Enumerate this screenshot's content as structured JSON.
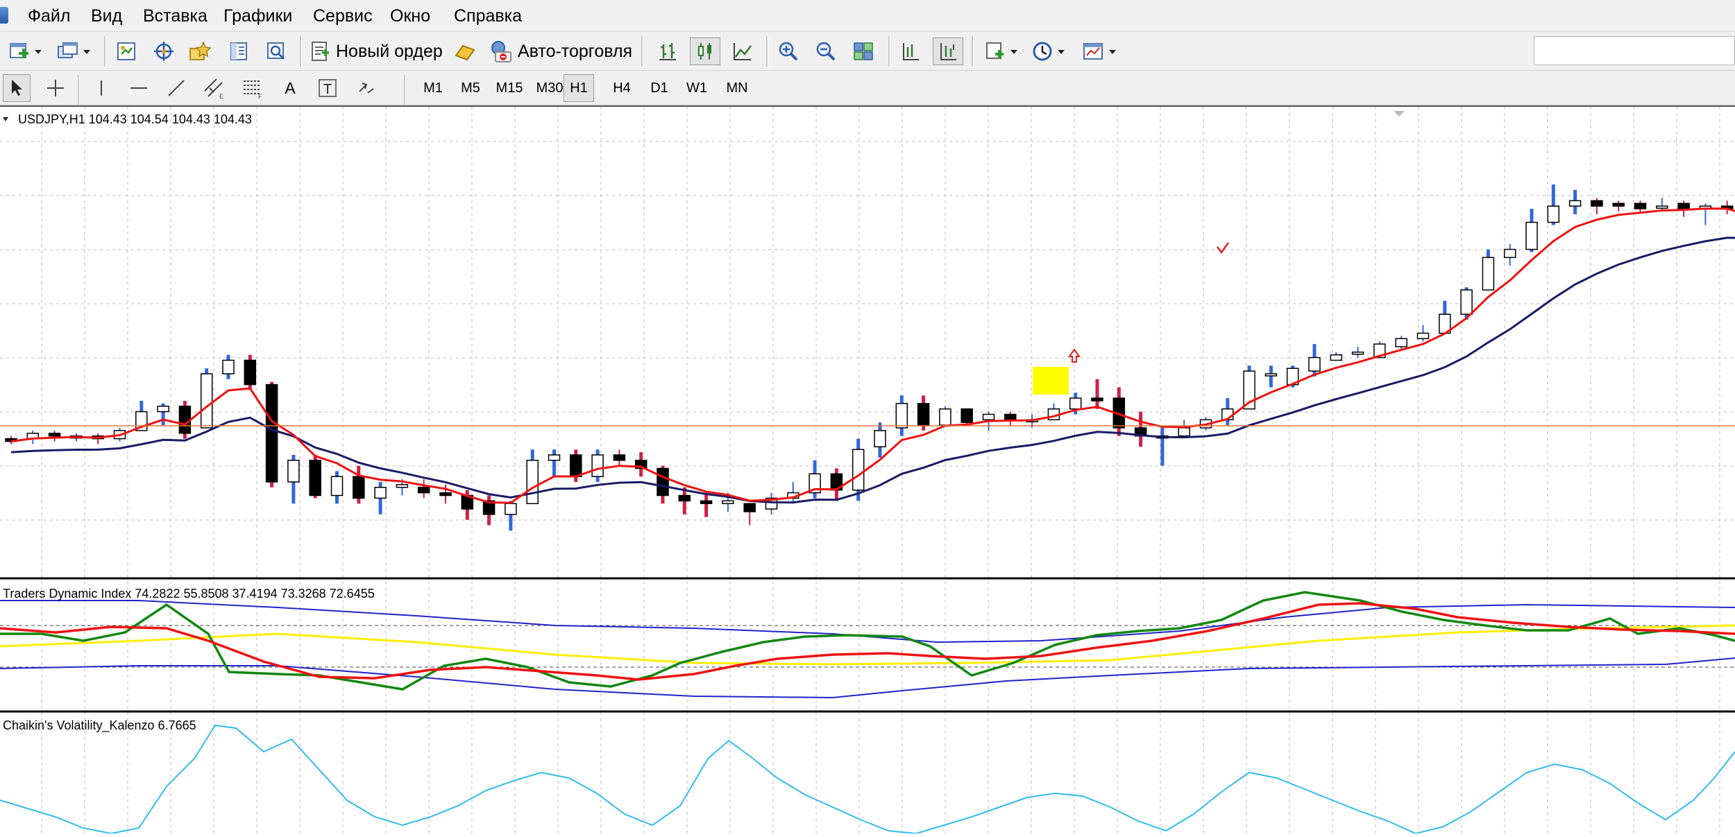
{
  "menu": [
    "Файл",
    "Вид",
    "Вставка",
    "Графики",
    "Сервис",
    "Окно",
    "Справка"
  ],
  "toolbar": {
    "new_order_label": "Новый ордер",
    "auto_trading_label": "Авто-торговля",
    "icons": [
      "new-chart-icon",
      "profiles-icon",
      "market-watch-icon",
      "navigator-icon",
      "favorites-icon",
      "data-window-icon",
      "strategy-tester-icon",
      "bar-chart-icon",
      "candlestick-icon",
      "line-chart-icon",
      "zoom-in-icon",
      "zoom-out-icon",
      "tile-windows-icon",
      "chart-shift-icon",
      "autoscroll-icon",
      "indicators-icon",
      "periods-icon",
      "templates-icon"
    ]
  },
  "drawing_tools": [
    "cursor-icon",
    "crosshair-icon",
    "vertical-line-icon",
    "horizontal-line-icon",
    "trendline-icon",
    "equidistant-channel-icon",
    "fibonacci-icon",
    "text-icon",
    "text-label-icon",
    "arrow-tools-icon"
  ],
  "drawing_labels": {
    "text": "A",
    "label": "T"
  },
  "timeframes": [
    "M1",
    "M5",
    "M15",
    "M30",
    "H1",
    "H4",
    "D1",
    "W1",
    "MN"
  ],
  "active_timeframe": "H1",
  "main_chart": {
    "label": "USDJPY,H1  104.43 104.54 104.43 104.43",
    "colors": {
      "bull_body": "#ffffff",
      "bear_body": "#000000",
      "bull_shadow": "#3366dd",
      "bear_shadow": "#cc2244",
      "ma_fast": "#ee1111",
      "ma_slow": "#1a1a66",
      "h_line": "#e0783a",
      "highlight": "#ffff00"
    }
  },
  "tdi_panel": {
    "label": "Traders Dynamic Index 74.2822 55.8508 37.4194 73.3268 72.6455",
    "colors": {
      "upper_band": "#2222cc",
      "lower_band": "#2222cc",
      "middle": "#ffee00",
      "rsi_price": "#118811",
      "trade_signal": "#ee1111"
    }
  },
  "chaikin_panel": {
    "label": "Chaikin's Volatility_Kalenzo 6.7665",
    "color": "#33bbee"
  },
  "chart_data": [
    {
      "type": "candlestick",
      "symbol": "USDJPY",
      "timeframe": "H1",
      "ohlc_last": {
        "open": 104.43,
        "high": 104.54,
        "low": 104.43,
        "close": 104.43
      },
      "candles_relative": [
        [
          0.26,
          0.25,
          0.24,
          0.27
        ],
        [
          0.26,
          0.28,
          0.24,
          0.29
        ],
        [
          0.28,
          0.27,
          0.25,
          0.29
        ],
        [
          0.27,
          0.27,
          0.25,
          0.28
        ],
        [
          0.27,
          0.26,
          0.24,
          0.28
        ],
        [
          0.26,
          0.29,
          0.25,
          0.3
        ],
        [
          0.29,
          0.36,
          0.29,
          0.4
        ],
        [
          0.36,
          0.38,
          0.31,
          0.39
        ],
        [
          0.38,
          0.28,
          0.26,
          0.4
        ],
        [
          0.3,
          0.5,
          0.3,
          0.52
        ],
        [
          0.5,
          0.55,
          0.48,
          0.57
        ],
        [
          0.55,
          0.46,
          0.44,
          0.57
        ],
        [
          0.46,
          0.1,
          0.08,
          0.47
        ],
        [
          0.1,
          0.18,
          0.02,
          0.2
        ],
        [
          0.18,
          0.05,
          0.04,
          0.2
        ],
        [
          0.05,
          0.12,
          0.02,
          0.14
        ],
        [
          0.12,
          0.04,
          0.02,
          0.16
        ],
        [
          0.04,
          0.08,
          -0.02,
          0.1
        ],
        [
          0.08,
          0.09,
          0.05,
          0.11
        ],
        [
          0.08,
          0.06,
          0.04,
          0.11
        ],
        [
          0.06,
          0.05,
          0.02,
          0.09
        ],
        [
          0.05,
          0.0,
          -0.04,
          0.07
        ],
        [
          0.03,
          -0.02,
          -0.06,
          0.05
        ],
        [
          -0.02,
          0.02,
          -0.08,
          0.03
        ],
        [
          0.02,
          0.18,
          0.02,
          0.22
        ],
        [
          0.18,
          0.2,
          0.12,
          0.22
        ],
        [
          0.2,
          0.12,
          0.1,
          0.22
        ],
        [
          0.12,
          0.2,
          0.1,
          0.22
        ],
        [
          0.2,
          0.18,
          0.16,
          0.22
        ],
        [
          0.18,
          0.15,
          0.12,
          0.21
        ],
        [
          0.15,
          0.05,
          0.02,
          0.16
        ],
        [
          0.05,
          0.03,
          -0.02,
          0.08
        ],
        [
          0.03,
          0.02,
          -0.03,
          0.06
        ],
        [
          0.02,
          0.03,
          -0.01,
          0.06
        ],
        [
          0.02,
          -0.01,
          -0.06,
          0.02
        ],
        [
          0.0,
          0.04,
          -0.02,
          0.06
        ],
        [
          0.04,
          0.06,
          0.02,
          0.1
        ],
        [
          0.06,
          0.13,
          0.04,
          0.18
        ],
        [
          0.13,
          0.07,
          0.03,
          0.15
        ],
        [
          0.07,
          0.22,
          0.03,
          0.26
        ],
        [
          0.23,
          0.29,
          0.19,
          0.32
        ],
        [
          0.3,
          0.39,
          0.27,
          0.42
        ],
        [
          0.39,
          0.31,
          0.29,
          0.42
        ],
        [
          0.31,
          0.37,
          0.33,
          0.38
        ],
        [
          0.37,
          0.32,
          0.31,
          0.37
        ],
        [
          0.33,
          0.35,
          0.29,
          0.36
        ],
        [
          0.35,
          0.33,
          0.31,
          0.36
        ],
        [
          0.33,
          0.33,
          0.3,
          0.35
        ],
        [
          0.33,
          0.37,
          0.33,
          0.39
        ],
        [
          0.37,
          0.41,
          0.35,
          0.43
        ],
        [
          0.41,
          0.4,
          0.37,
          0.48
        ],
        [
          0.41,
          0.3,
          0.27,
          0.45
        ],
        [
          0.3,
          0.27,
          0.23,
          0.36
        ],
        [
          0.27,
          0.27,
          0.16,
          0.3
        ],
        [
          0.27,
          0.3,
          0.27,
          0.33
        ],
        [
          0.3,
          0.33,
          0.29,
          0.34
        ],
        [
          0.33,
          0.37,
          0.31,
          0.41
        ],
        [
          0.37,
          0.51,
          0.37,
          0.53
        ],
        [
          0.5,
          0.5,
          0.45,
          0.53
        ],
        [
          0.46,
          0.52,
          0.45,
          0.53
        ],
        [
          0.51,
          0.56,
          0.49,
          0.61
        ],
        [
          0.55,
          0.57,
          0.55,
          0.58
        ],
        [
          0.58,
          0.58,
          0.56,
          0.6
        ],
        [
          0.56,
          0.61,
          0.56,
          0.62
        ],
        [
          0.6,
          0.63,
          0.59,
          0.64
        ],
        [
          0.63,
          0.65,
          0.62,
          0.68
        ],
        [
          0.65,
          0.72,
          0.65,
          0.77
        ],
        [
          0.72,
          0.81,
          0.7,
          0.82
        ],
        [
          0.81,
          0.93,
          0.81,
          0.96
        ],
        [
          0.93,
          0.96,
          0.9,
          0.98
        ],
        [
          0.96,
          1.06,
          0.95,
          1.11
        ],
        [
          1.06,
          1.12,
          1.05,
          1.2
        ],
        [
          1.12,
          1.14,
          1.09,
          1.18
        ],
        [
          1.14,
          1.12,
          1.09,
          1.15
        ],
        [
          1.13,
          1.12,
          1.1,
          1.14
        ],
        [
          1.13,
          1.11,
          1.1,
          1.14
        ],
        [
          1.12,
          1.12,
          1.1,
          1.15
        ],
        [
          1.13,
          1.11,
          1.08,
          1.14
        ],
        [
          1.11,
          1.12,
          1.05,
          1.13
        ],
        [
          1.12,
          1.11,
          1.09,
          1.14
        ],
        [
          1.11,
          1.04,
          1.02,
          1.12
        ],
        [
          1.04,
          1.06,
          1.03,
          1.08
        ],
        [
          1.06,
          1.06,
          1.04,
          1.08
        ],
        [
          1.06,
          1.07,
          1.05,
          1.1
        ],
        [
          1.06,
          1.16,
          1.05,
          1.17
        ],
        [
          1.15,
          1.17,
          1.12,
          1.21
        ],
        [
          1.17,
          1.13,
          1.12,
          1.19
        ],
        [
          1.13,
          1.1,
          1.07,
          1.15
        ],
        [
          1.1,
          1.12,
          1.06,
          1.15
        ],
        [
          1.12,
          1.13,
          1.1,
          1.14
        ],
        [
          1.13,
          1.12,
          1.09,
          1.14
        ],
        [
          1.13,
          1.18,
          1.13,
          1.26
        ],
        [
          1.17,
          1.1,
          1.08,
          1.2
        ],
        [
          1.1,
          1.06,
          1.02,
          1.13
        ]
      ],
      "relative_scale_note": ""
    },
    {
      "type": "line",
      "name": "Traders Dynamic Index",
      "values": [
        74.2822,
        55.8508,
        37.4194,
        73.3268,
        72.6455
      ]
    },
    {
      "type": "line",
      "name": "Chaikin's Volatility_Kalenzo",
      "values": [
        6.7665
      ]
    }
  ]
}
